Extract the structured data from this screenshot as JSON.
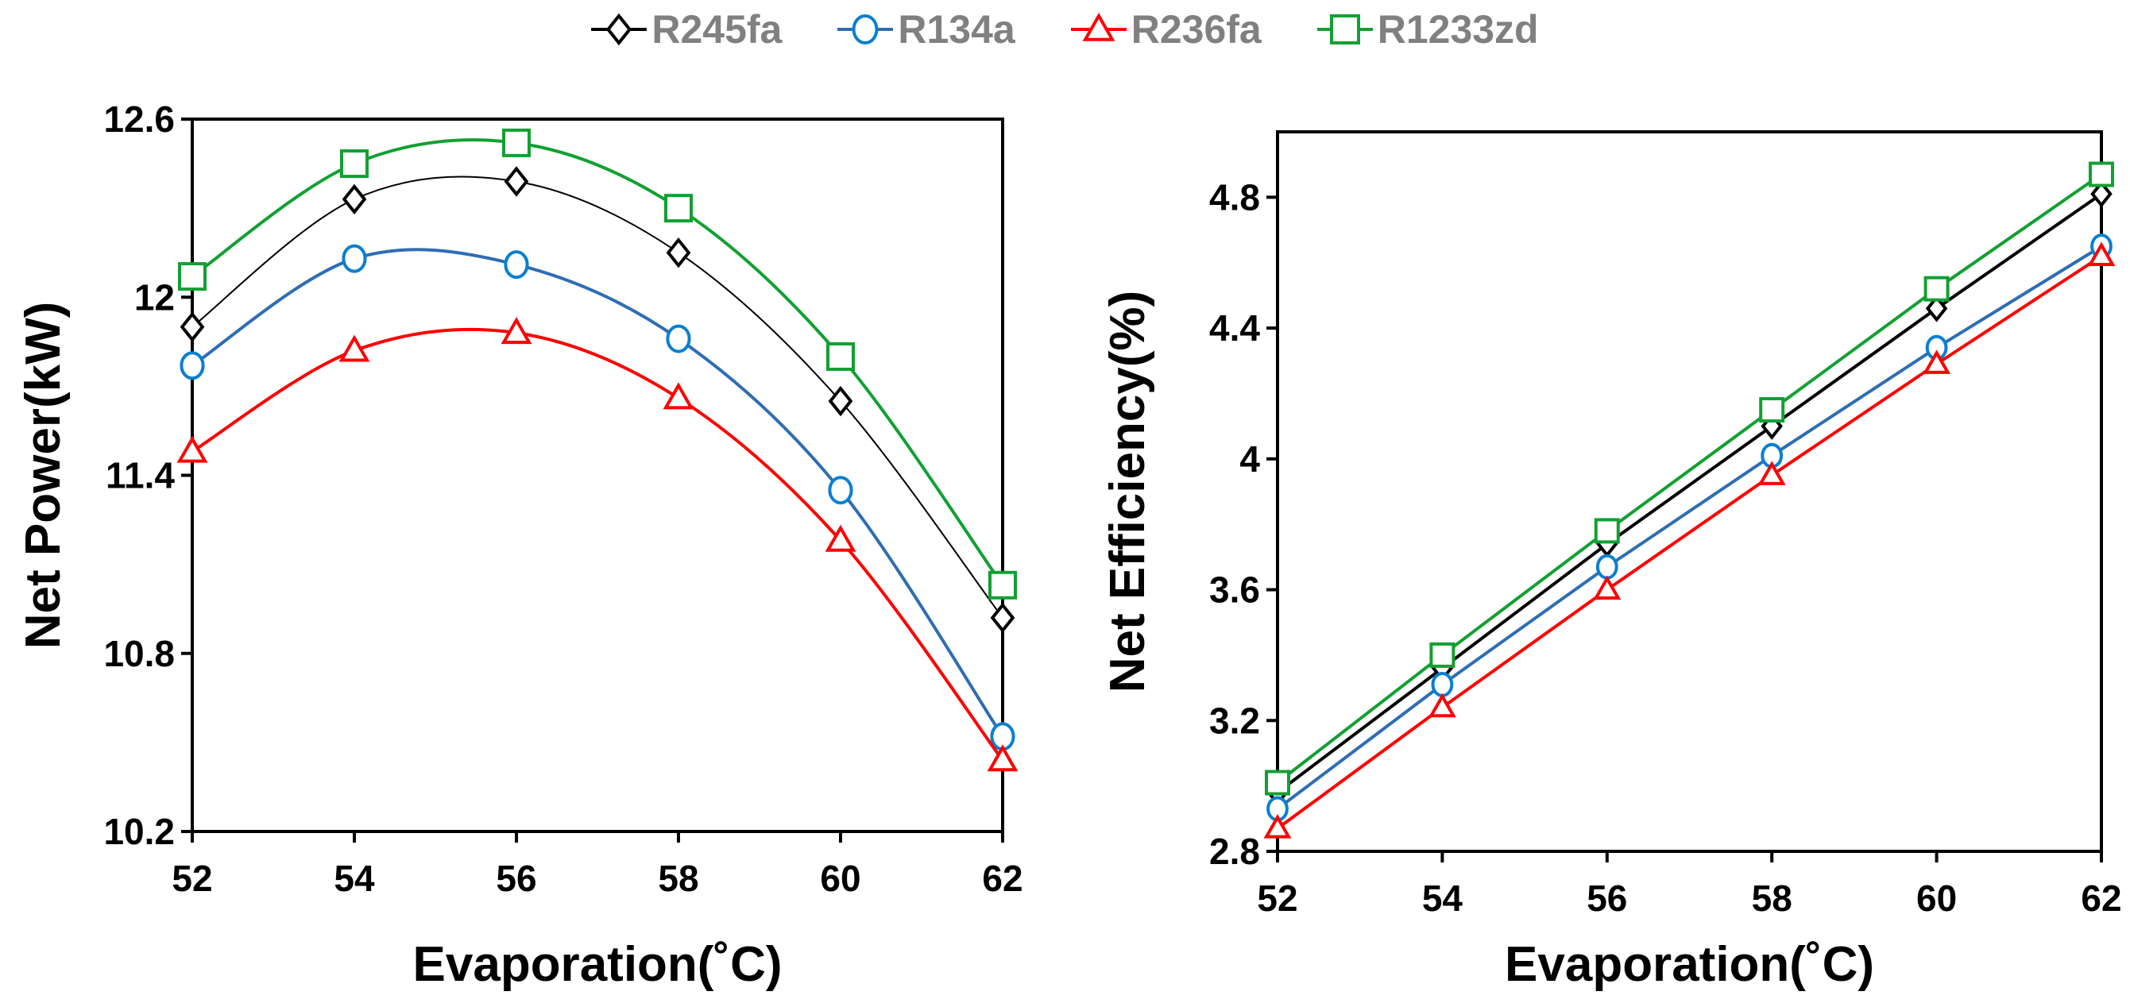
{
  "legend": [
    {
      "name": "R245fa",
      "color": "#000000",
      "marker": "diamond"
    },
    {
      "name": "R134a",
      "color": "#2e6db4",
      "marker_color": "#0a7fd1",
      "marker": "circle"
    },
    {
      "name": "R236fa",
      "color": "#ff0000",
      "marker": "triangle"
    },
    {
      "name": "R1233zd",
      "color": "#11a032",
      "marker": "square"
    }
  ],
  "chart_data": [
    {
      "type": "line",
      "smooth": true,
      "xlabel": "Evaporation(˚C)",
      "ylabel": "Net Power(kW)",
      "x": [
        52,
        54,
        56,
        58,
        60,
        62
      ],
      "xlim": [
        52,
        62
      ],
      "ylim": [
        10.2,
        12.6
      ],
      "yticks": [
        "10.2",
        "10.8",
        "11.4",
        "12",
        "12.6"
      ],
      "xticks": [
        "52",
        "54",
        "56",
        "58",
        "60",
        "62"
      ],
      "series": [
        {
          "name": "R245fa",
          "values": [
            11.9,
            12.33,
            12.39,
            12.15,
            11.65,
            10.92
          ]
        },
        {
          "name": "R134a",
          "values": [
            11.77,
            12.13,
            12.11,
            11.86,
            11.35,
            10.52
          ]
        },
        {
          "name": "R236fa",
          "values": [
            11.48,
            11.82,
            11.88,
            11.66,
            11.18,
            10.44
          ]
        },
        {
          "name": "R1233zd",
          "values": [
            12.07,
            12.45,
            12.52,
            12.3,
            11.8,
            11.03
          ]
        }
      ]
    },
    {
      "type": "line",
      "smooth": false,
      "xlabel": "Evaporation(˚C)",
      "ylabel": "Net Efficiency(%)",
      "x": [
        52,
        54,
        56,
        58,
        60,
        62
      ],
      "xlim": [
        52,
        62
      ],
      "ylim": [
        2.8,
        5.0
      ],
      "yticks": [
        "2.8",
        "3.2",
        "3.6",
        "4",
        "4.4",
        "4.8"
      ],
      "xticks": [
        "52",
        "54",
        "56",
        "58",
        "60",
        "62"
      ],
      "series": [
        {
          "name": "R245fa",
          "values": [
            2.98,
            3.36,
            3.74,
            4.1,
            4.46,
            4.81
          ]
        },
        {
          "name": "R134a",
          "values": [
            2.93,
            3.31,
            3.67,
            4.01,
            4.34,
            4.65
          ]
        },
        {
          "name": "R236fa",
          "values": [
            2.87,
            3.24,
            3.6,
            3.95,
            4.29,
            4.62
          ]
        },
        {
          "name": "R1233zd",
          "values": [
            3.01,
            3.4,
            3.78,
            4.15,
            4.52,
            4.87
          ]
        }
      ]
    }
  ]
}
